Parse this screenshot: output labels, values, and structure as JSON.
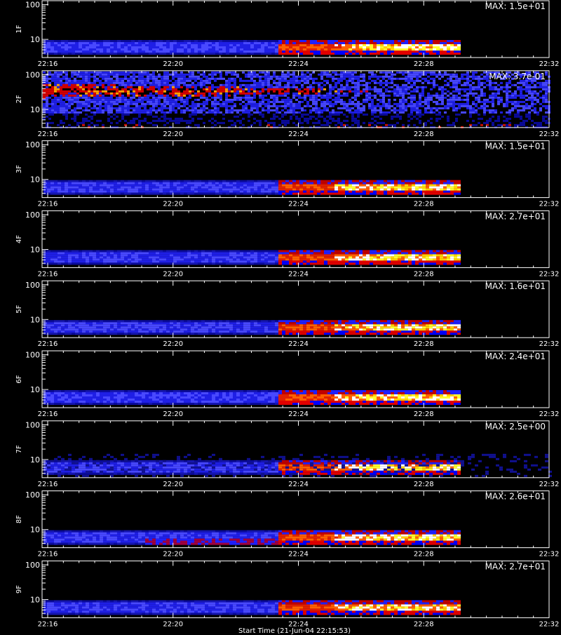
{
  "chart_data": {
    "type": "heatmap",
    "x_ticks": [
      "22:16",
      "22:20",
      "22:24",
      "22:28",
      "22:32"
    ],
    "y_ticks": [
      "10",
      "100"
    ],
    "y_scale": "log",
    "colormap": [
      "#000000",
      "#0000c8",
      "#3333ff",
      "#c80000",
      "#ff5a00",
      "#ffff00",
      "#ffffff"
    ],
    "panels": [
      {
        "channel": "1F",
        "max_label": "MAX: 1.5e+01",
        "pattern": "band"
      },
      {
        "channel": "2F",
        "max_label": "MAX: 3.7e-01",
        "pattern": "diffuse"
      },
      {
        "channel": "3F",
        "max_label": "MAX: 1.5e+01",
        "pattern": "band"
      },
      {
        "channel": "4F",
        "max_label": "MAX: 2.7e+01",
        "pattern": "band"
      },
      {
        "channel": "5F",
        "max_label": "MAX: 1.6e+01",
        "pattern": "band"
      },
      {
        "channel": "6F",
        "max_label": "MAX: 2.4e+01",
        "pattern": "band"
      },
      {
        "channel": "7F",
        "max_label": "MAX: 2.5e+00",
        "pattern": "band_noisy"
      },
      {
        "channel": "8F",
        "max_label": "MAX: 2.6e+01",
        "pattern": "band"
      },
      {
        "channel": "9F",
        "max_label": "MAX: 2.7e+01",
        "pattern": "band"
      }
    ]
  },
  "footer": {
    "xlabel": "Start Time (21-Jun-04 22:15:53)"
  }
}
